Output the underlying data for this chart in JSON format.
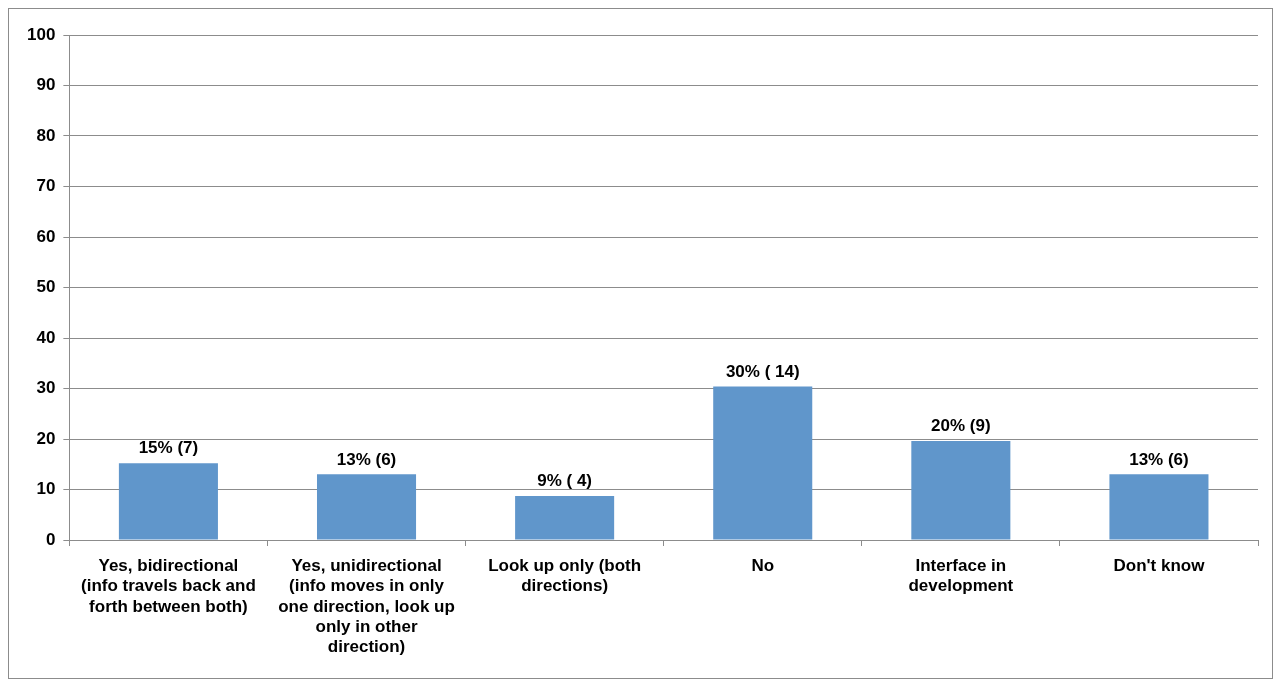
{
  "chart_data": {
    "type": "bar",
    "categories": [
      "Yes, bidirectional (info travels back and forth between both)",
      "Yes, unidirectional (info moves in only one direction, look up only in other direction)",
      "Look up only (both directions)",
      "No",
      "Interface in development",
      "Don't know"
    ],
    "values": [
      15.2,
      13.0,
      8.7,
      30.4,
      19.6,
      13.0
    ],
    "value_labels": [
      "15% (7)",
      "13% (6)",
      "9% ( 4)",
      "30% ( 14)",
      "20% (9)",
      "13% (6)"
    ],
    "color": "#6096cb",
    "ylim": [
      0,
      100
    ],
    "yticks": [
      0,
      10,
      20,
      30,
      40,
      50,
      60,
      70,
      80,
      90,
      100
    ],
    "grid": "y",
    "legend": false
  }
}
